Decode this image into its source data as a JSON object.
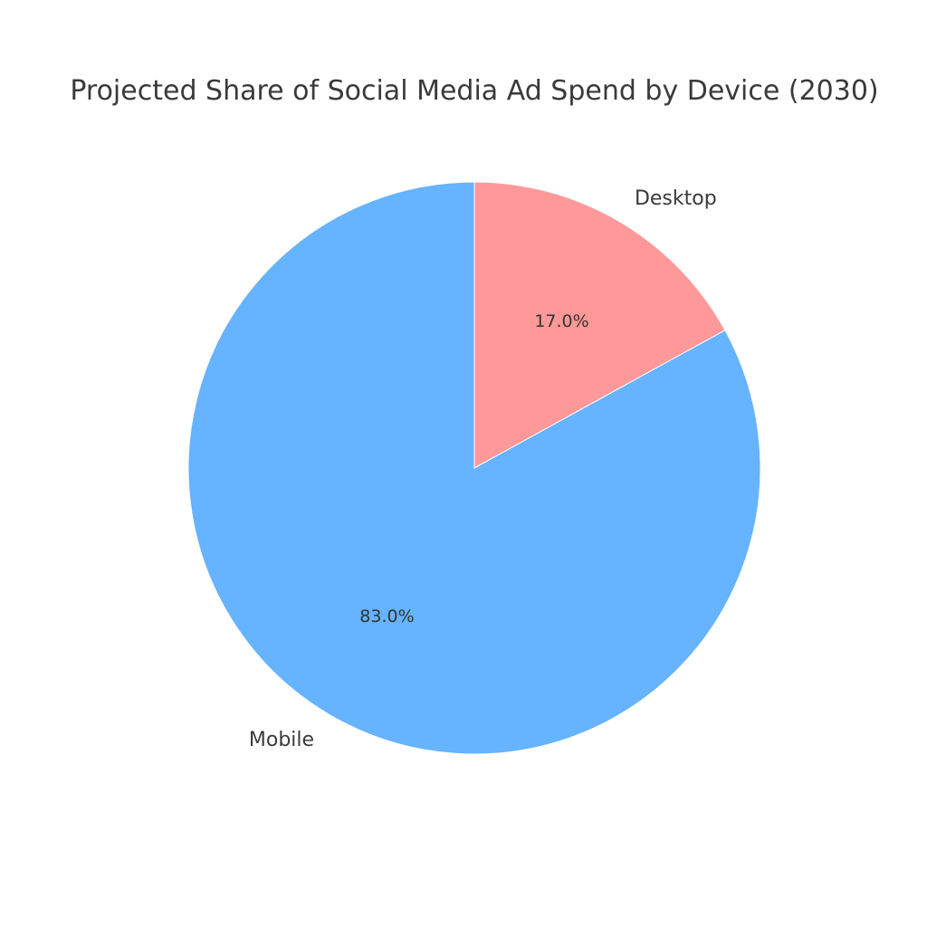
{
  "chart_data": {
    "type": "pie",
    "title": "Projected Share of Social Media Ad Spend by Device (2030)",
    "categories": [
      "Mobile",
      "Desktop"
    ],
    "values": [
      83.0,
      17.0
    ],
    "value_labels": [
      "83.0%",
      "17.0%"
    ],
    "colors": [
      "#66b3ff",
      "#ff9999"
    ],
    "start_angle": "top",
    "direction": "clockwise-from-desktop"
  }
}
